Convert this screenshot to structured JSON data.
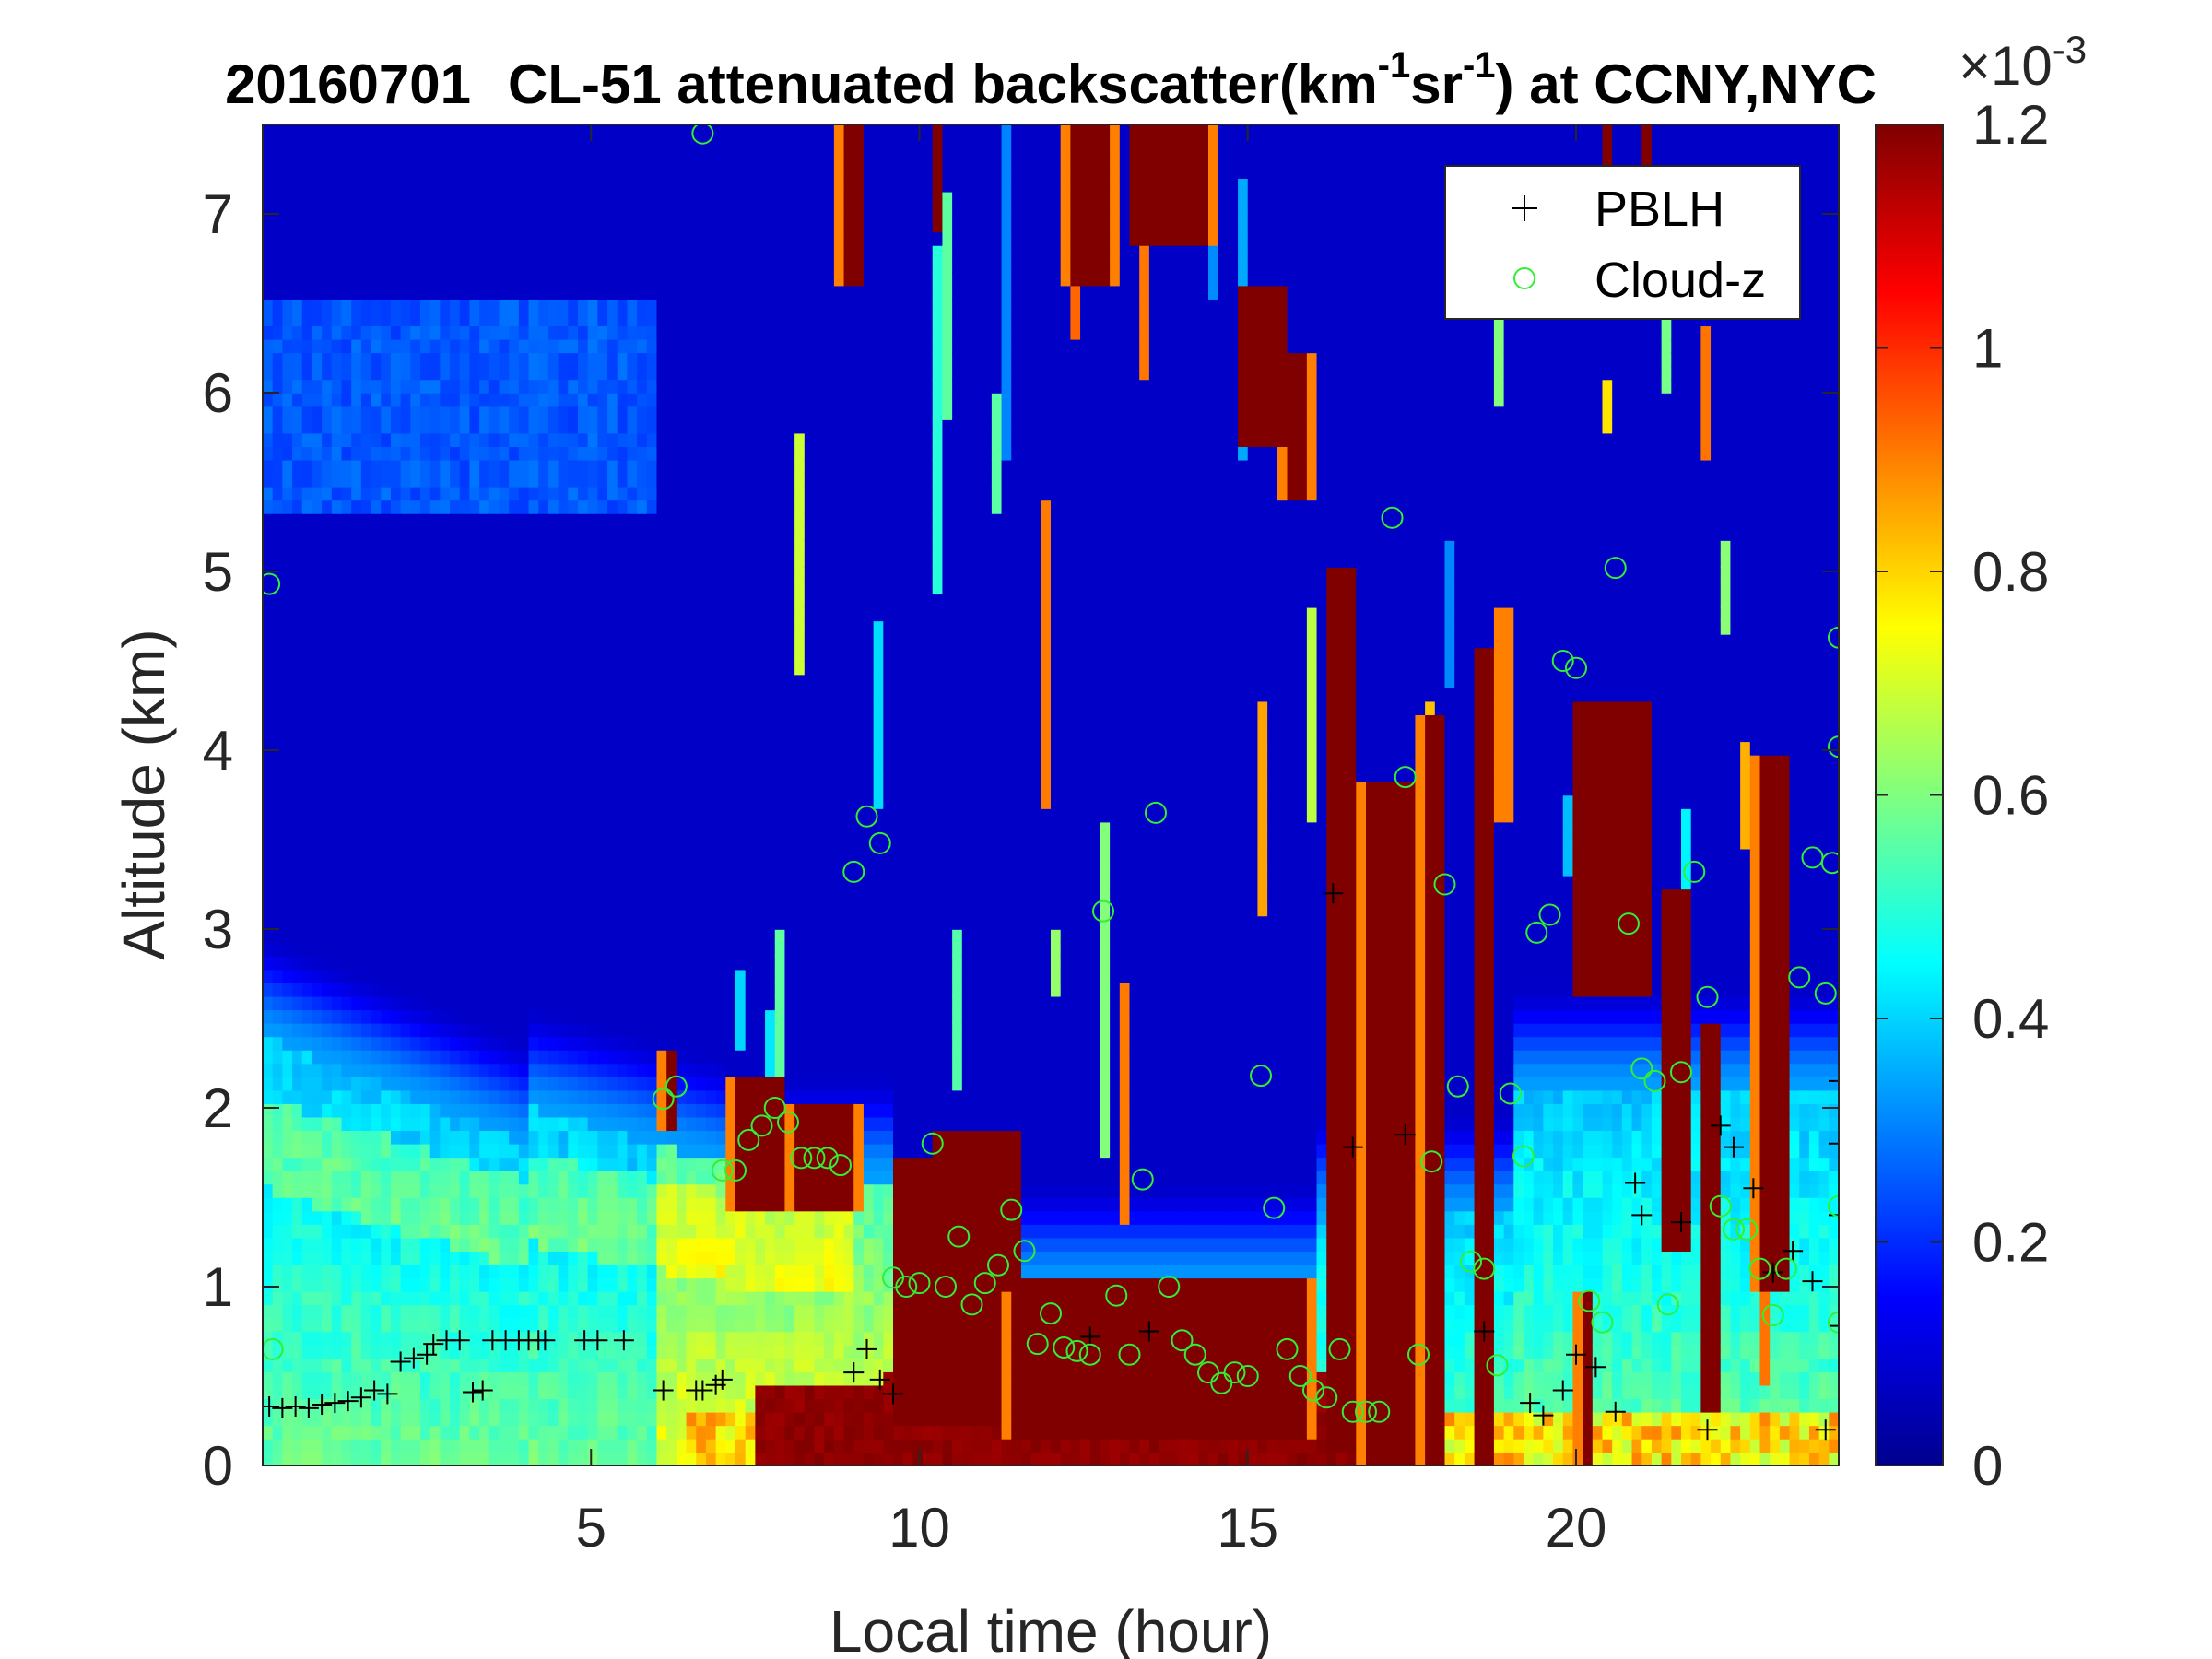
{
  "chart_data": {
    "type": "heatmap",
    "title": {
      "date": "20160701",
      "prefix": "CL-51 attenuated backscatter(km",
      "exp1": "-1",
      "mid": "sr",
      "exp2": "-1",
      "suffix": ") at CCNY,NYC"
    },
    "xlabel": "Local time (hour)",
    "ylabel": "Altitude (km)",
    "xlim": [
      0,
      24
    ],
    "ylim": [
      0,
      7.5
    ],
    "xticks": [
      5,
      10,
      15,
      20
    ],
    "yticks": [
      0,
      1,
      2,
      3,
      4,
      5,
      6,
      7
    ],
    "colorbar": {
      "colormap": "jet",
      "range": [
        0,
        1.2
      ],
      "ticks": [
        "0",
        "0.2",
        "0.4",
        "0.6",
        "0.8",
        "1",
        "1.2"
      ],
      "scale_base": "×10",
      "scale_exp": "-3"
    },
    "grid": false,
    "legend": {
      "position": "top-right",
      "entries": [
        {
          "label": "PBLH",
          "marker": "+",
          "color": "#000000"
        },
        {
          "label": "Cloud-z",
          "marker": "o",
          "color": "#33ee33"
        }
      ]
    },
    "series": [
      {
        "name": "PBLH",
        "points": [
          [
            0.1,
            0.33
          ],
          [
            0.3,
            0.32
          ],
          [
            0.5,
            0.33
          ],
          [
            0.7,
            0.32
          ],
          [
            0.9,
            0.34
          ],
          [
            1.1,
            0.35
          ],
          [
            1.3,
            0.36
          ],
          [
            1.5,
            0.38
          ],
          [
            1.7,
            0.42
          ],
          [
            1.9,
            0.4
          ],
          [
            2.1,
            0.58
          ],
          [
            2.3,
            0.6
          ],
          [
            2.5,
            0.62
          ],
          [
            2.6,
            0.68
          ],
          [
            2.8,
            0.7
          ],
          [
            3.0,
            0.7
          ],
          [
            3.2,
            0.41
          ],
          [
            3.35,
            0.42
          ],
          [
            3.5,
            0.7
          ],
          [
            3.7,
            0.7
          ],
          [
            3.9,
            0.7
          ],
          [
            4.05,
            0.7
          ],
          [
            4.2,
            0.7
          ],
          [
            4.3,
            0.7
          ],
          [
            4.9,
            0.7
          ],
          [
            5.1,
            0.7
          ],
          [
            5.5,
            0.7
          ],
          [
            6.1,
            0.42
          ],
          [
            6.6,
            0.42
          ],
          [
            6.7,
            0.42
          ],
          [
            6.9,
            0.45
          ],
          [
            7.0,
            0.48
          ],
          [
            9.0,
            0.52
          ],
          [
            9.2,
            0.65
          ],
          [
            9.4,
            0.48
          ],
          [
            9.6,
            0.4
          ],
          [
            12.6,
            0.72
          ],
          [
            13.5,
            0.75
          ],
          [
            16.3,
            3.2
          ],
          [
            16.6,
            1.78
          ],
          [
            17.4,
            1.85
          ],
          [
            18.6,
            0.75
          ],
          [
            19.3,
            0.35
          ],
          [
            19.5,
            0.28
          ],
          [
            19.8,
            0.42
          ],
          [
            20.0,
            0.62
          ],
          [
            20.3,
            0.55
          ],
          [
            20.6,
            0.3
          ],
          [
            20.9,
            1.58
          ],
          [
            21.0,
            1.4
          ],
          [
            21.6,
            1.36
          ],
          [
            22.0,
            0.2
          ],
          [
            22.2,
            1.9
          ],
          [
            22.4,
            1.78
          ],
          [
            22.7,
            1.55
          ],
          [
            23.0,
            1.08
          ],
          [
            23.3,
            1.2
          ],
          [
            23.6,
            1.03
          ],
          [
            23.8,
            0.2
          ],
          [
            24.0,
            0.78
          ],
          [
            24.0,
            2.15
          ],
          [
            24.0,
            1.8
          ],
          [
            24.0,
            1.4
          ]
        ]
      },
      {
        "name": "Cloud-z",
        "points": [
          [
            0.1,
            4.93
          ],
          [
            0.15,
            0.65
          ],
          [
            6.1,
            2.05
          ],
          [
            6.3,
            2.12
          ],
          [
            6.7,
            7.45
          ],
          [
            7.0,
            1.65
          ],
          [
            7.2,
            1.65
          ],
          [
            7.4,
            1.82
          ],
          [
            7.6,
            1.9
          ],
          [
            7.8,
            2.0
          ],
          [
            8.0,
            1.92
          ],
          [
            8.2,
            1.72
          ],
          [
            8.4,
            1.72
          ],
          [
            8.6,
            1.72
          ],
          [
            8.8,
            1.68
          ],
          [
            9.0,
            3.32
          ],
          [
            9.2,
            3.63
          ],
          [
            9.4,
            3.48
          ],
          [
            9.6,
            1.05
          ],
          [
            9.8,
            1.0
          ],
          [
            10.0,
            1.02
          ],
          [
            10.2,
            1.8
          ],
          [
            10.4,
            1.0
          ],
          [
            10.6,
            1.28
          ],
          [
            10.8,
            0.9
          ],
          [
            11.0,
            1.02
          ],
          [
            11.2,
            1.12
          ],
          [
            11.4,
            1.43
          ],
          [
            11.6,
            1.2
          ],
          [
            11.8,
            0.68
          ],
          [
            12.0,
            0.85
          ],
          [
            12.2,
            0.66
          ],
          [
            12.4,
            0.64
          ],
          [
            12.6,
            0.62
          ],
          [
            12.8,
            3.1
          ],
          [
            13.0,
            0.95
          ],
          [
            13.2,
            0.62
          ],
          [
            13.4,
            1.6
          ],
          [
            13.6,
            3.65
          ],
          [
            13.8,
            1.0
          ],
          [
            14.0,
            0.7
          ],
          [
            14.2,
            0.62
          ],
          [
            14.4,
            0.52
          ],
          [
            14.6,
            0.46
          ],
          [
            14.8,
            0.52
          ],
          [
            15.0,
            0.5
          ],
          [
            15.2,
            2.18
          ],
          [
            15.4,
            1.44
          ],
          [
            15.6,
            0.65
          ],
          [
            15.8,
            0.5
          ],
          [
            16.0,
            0.42
          ],
          [
            16.2,
            0.38
          ],
          [
            16.4,
            0.65
          ],
          [
            16.6,
            0.3
          ],
          [
            16.8,
            0.3
          ],
          [
            17.0,
            0.3
          ],
          [
            17.2,
            5.3
          ],
          [
            17.4,
            3.85
          ],
          [
            17.6,
            0.62
          ],
          [
            17.8,
            1.7
          ],
          [
            18.0,
            3.25
          ],
          [
            18.2,
            2.12
          ],
          [
            18.4,
            1.14
          ],
          [
            18.6,
            1.1
          ],
          [
            18.8,
            0.56
          ],
          [
            19.0,
            2.08
          ],
          [
            19.2,
            1.73
          ],
          [
            19.4,
            2.98
          ],
          [
            19.6,
            3.08
          ],
          [
            19.8,
            4.5
          ],
          [
            20.0,
            4.46
          ],
          [
            20.2,
            0.92
          ],
          [
            20.4,
            0.8
          ],
          [
            20.6,
            5.02
          ],
          [
            20.8,
            3.03
          ],
          [
            21.0,
            2.22
          ],
          [
            21.2,
            2.15
          ],
          [
            21.4,
            0.9
          ],
          [
            21.6,
            2.2
          ],
          [
            21.8,
            3.32
          ],
          [
            22.0,
            2.62
          ],
          [
            22.2,
            1.45
          ],
          [
            22.4,
            1.32
          ],
          [
            22.6,
            1.32
          ],
          [
            22.8,
            1.1
          ],
          [
            23.0,
            0.84
          ],
          [
            23.2,
            1.1
          ],
          [
            23.4,
            2.73
          ],
          [
            23.6,
            3.4
          ],
          [
            23.8,
            2.64
          ],
          [
            24.0,
            1.45
          ],
          [
            23.9,
            3.37
          ],
          [
            24.0,
            4.02
          ],
          [
            24.0,
            4.63
          ],
          [
            24.0,
            0.8
          ]
        ]
      }
    ]
  }
}
